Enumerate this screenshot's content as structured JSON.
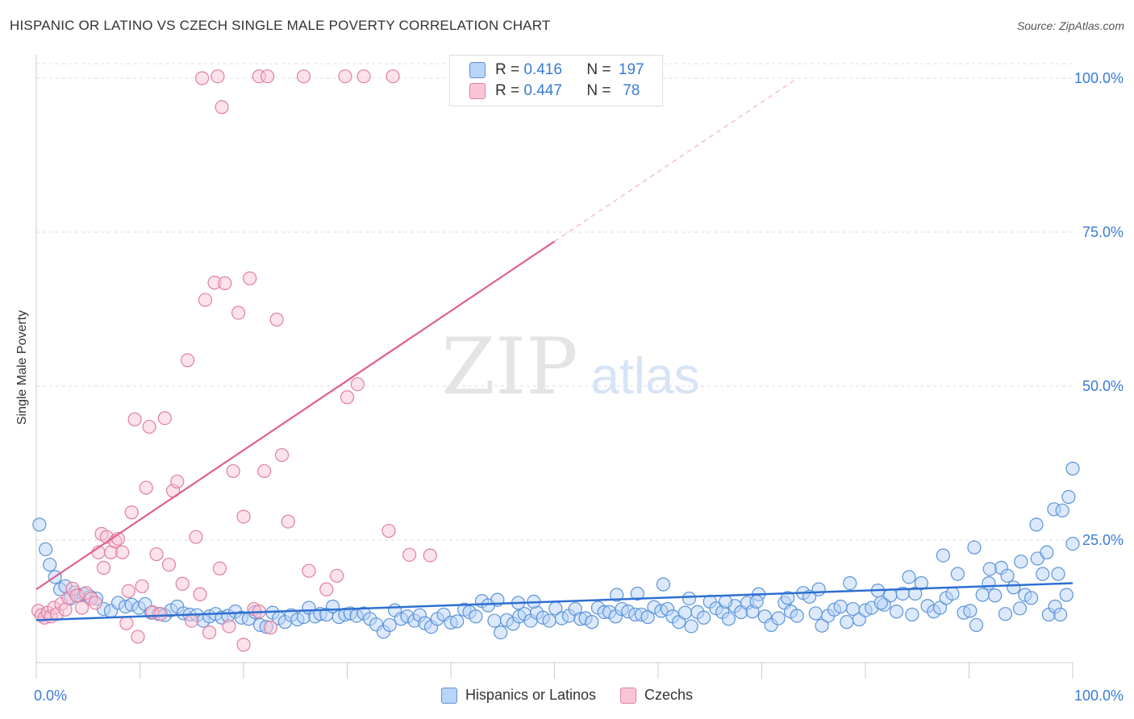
{
  "title": "HISPANIC OR LATINO VS CZECH SINGLE MALE POVERTY CORRELATION CHART",
  "source": "Source: ZipAtlas.com",
  "watermark": {
    "zip": "ZIP",
    "atlas": "atlas"
  },
  "legend_top": [
    {
      "r_label": "R =",
      "r_value": "0.416",
      "n_label": "N =",
      "n_value": "197",
      "color": "#a9c9f5"
    },
    {
      "r_label": "R =",
      "r_value": "0.447",
      "n_label": "N =",
      "n_value": "78",
      "color": "#f7b6cb"
    }
  ],
  "colors": {
    "blue_fill": "#b8d4f7",
    "blue_stroke": "#5b93d9",
    "blue_line": "#2d6fd1",
    "pink_fill": "#f9c5d5",
    "pink_stroke": "#e07fa0",
    "pink_line": "#e0608a",
    "accent_text": "#3a7bd5",
    "grid": "#dddddd"
  },
  "chart_data": {
    "type": "scatter",
    "title": "HISPANIC OR LATINO VS CZECH SINGLE MALE POVERTY CORRELATION CHART",
    "xlabel": "",
    "ylabel": "Single Male Poverty",
    "xlim": [
      0,
      100
    ],
    "ylim": [
      5,
      102
    ],
    "x_tick_labels": [
      "0.0%",
      "100.0%"
    ],
    "y_ticks": [
      25,
      50,
      75,
      100
    ],
    "y_tick_labels": [
      "25.0%",
      "50.0%",
      "75.0%",
      "100.0%"
    ],
    "grid": true,
    "legend_position": "bottom",
    "series": [
      {
        "name": "Hispanics or Latinos",
        "color": "#5b93d9",
        "trend": {
          "x": [
            0,
            100
          ],
          "y": [
            12.0,
            18.0
          ],
          "style": "solid"
        },
        "points": [
          [
            0.3,
            27.5
          ],
          [
            0.9,
            23.5
          ],
          [
            1.3,
            21.0
          ],
          [
            1.8,
            19.0
          ],
          [
            2.3,
            17.0
          ],
          [
            2.8,
            17.5
          ],
          [
            3.3,
            15.5
          ],
          [
            3.7,
            16.5
          ],
          [
            4.1,
            16.0
          ],
          [
            4.6,
            16.2
          ],
          [
            5.2,
            15.8
          ],
          [
            5.8,
            15.5
          ],
          [
            6.5,
            13.8
          ],
          [
            7.2,
            13.5
          ],
          [
            7.9,
            14.8
          ],
          [
            8.6,
            14.2
          ],
          [
            9.2,
            14.5
          ],
          [
            9.9,
            14.0
          ],
          [
            10.5,
            14.6
          ],
          [
            11.1,
            13.2
          ],
          [
            11.8,
            13.0
          ],
          [
            12.4,
            12.8
          ],
          [
            13.0,
            13.6
          ],
          [
            13.6,
            14.2
          ],
          [
            14.2,
            13.1
          ],
          [
            14.8,
            12.9
          ],
          [
            15.5,
            12.8
          ],
          [
            16.1,
            11.9
          ],
          [
            16.7,
            12.6
          ],
          [
            17.3,
            13.0
          ],
          [
            17.9,
            12.4
          ],
          [
            18.5,
            12.7
          ],
          [
            19.2,
            13.4
          ],
          [
            19.8,
            12.4
          ],
          [
            20.5,
            12.2
          ],
          [
            21.1,
            13.3
          ],
          [
            21.6,
            11.2
          ],
          [
            22.2,
            10.9
          ],
          [
            22.8,
            13.2
          ],
          [
            23.4,
            12.3
          ],
          [
            24.0,
            11.7
          ],
          [
            24.6,
            12.8
          ],
          [
            25.2,
            12.1
          ],
          [
            25.8,
            12.5
          ],
          [
            26.3,
            14.0
          ],
          [
            26.9,
            12.6
          ],
          [
            27.4,
            13.0
          ],
          [
            28.0,
            12.9
          ],
          [
            28.6,
            14.2
          ],
          [
            29.2,
            12.5
          ],
          [
            29.8,
            12.9
          ],
          [
            30.3,
            13.1
          ],
          [
            30.9,
            12.7
          ],
          [
            31.6,
            13.1
          ],
          [
            32.2,
            12.2
          ],
          [
            32.8,
            11.3
          ],
          [
            33.5,
            10.1
          ],
          [
            34.1,
            11.2
          ],
          [
            34.6,
            13.6
          ],
          [
            35.2,
            12.2
          ],
          [
            35.8,
            12.6
          ],
          [
            36.5,
            11.9
          ],
          [
            37.0,
            12.8
          ],
          [
            37.5,
            11.5
          ],
          [
            38.1,
            10.9
          ],
          [
            38.7,
            12.2
          ],
          [
            39.3,
            12.9
          ],
          [
            40.0,
            11.6
          ],
          [
            40.6,
            11.8
          ],
          [
            41.3,
            13.7
          ],
          [
            41.8,
            13.3
          ],
          [
            42.4,
            12.6
          ],
          [
            43.0,
            15.1
          ],
          [
            43.6,
            14.4
          ],
          [
            44.2,
            11.9
          ],
          [
            44.8,
            10.0
          ],
          [
            45.4,
            12.0
          ],
          [
            46.0,
            11.4
          ],
          [
            46.6,
            12.6
          ],
          [
            47.1,
            13.0
          ],
          [
            47.7,
            11.9
          ],
          [
            48.3,
            13.2
          ],
          [
            48.9,
            12.4
          ],
          [
            49.5,
            11.9
          ],
          [
            50.1,
            13.9
          ],
          [
            50.7,
            12.3
          ],
          [
            51.4,
            12.7
          ],
          [
            52.0,
            13.8
          ],
          [
            52.5,
            12.2
          ],
          [
            53.0,
            12.3
          ],
          [
            53.6,
            11.7
          ],
          [
            54.2,
            14.0
          ],
          [
            54.8,
            13.3
          ],
          [
            55.3,
            13.3
          ],
          [
            55.9,
            12.6
          ],
          [
            56.5,
            13.8
          ],
          [
            57.1,
            13.4
          ],
          [
            57.8,
            12.9
          ],
          [
            58.4,
            12.9
          ],
          [
            59.0,
            12.5
          ],
          [
            59.6,
            14.1
          ],
          [
            60.3,
            13.5
          ],
          [
            60.9,
            13.8
          ],
          [
            61.4,
            12.6
          ],
          [
            62.0,
            11.7
          ],
          [
            62.6,
            13.2
          ],
          [
            63.2,
            11.0
          ],
          [
            63.8,
            13.3
          ],
          [
            64.4,
            12.4
          ],
          [
            65.0,
            15.0
          ],
          [
            65.6,
            13.9
          ],
          [
            66.2,
            13.3
          ],
          [
            66.8,
            12.2
          ],
          [
            67.4,
            14.3
          ],
          [
            68.0,
            13.3
          ],
          [
            68.6,
            14.8
          ],
          [
            69.1,
            13.4
          ],
          [
            69.7,
            16.2
          ],
          [
            70.3,
            12.6
          ],
          [
            70.9,
            11.2
          ],
          [
            71.6,
            12.3
          ],
          [
            72.2,
            14.8
          ],
          [
            72.8,
            13.4
          ],
          [
            73.4,
            12.7
          ],
          [
            74.0,
            16.4
          ],
          [
            74.6,
            15.8
          ],
          [
            75.2,
            13.1
          ],
          [
            75.8,
            11.1
          ],
          [
            76.4,
            12.7
          ],
          [
            77.0,
            13.7
          ],
          [
            77.6,
            14.2
          ],
          [
            78.2,
            11.7
          ],
          [
            78.8,
            13.8
          ],
          [
            79.4,
            12.1
          ],
          [
            80.0,
            13.6
          ],
          [
            80.6,
            14.0
          ],
          [
            81.2,
            16.8
          ],
          [
            81.8,
            14.5
          ],
          [
            82.4,
            16.0
          ],
          [
            83.0,
            13.4
          ],
          [
            83.6,
            16.3
          ],
          [
            84.2,
            19.0
          ],
          [
            84.8,
            16.3
          ],
          [
            85.4,
            18.0
          ],
          [
            86.0,
            14.3
          ],
          [
            86.6,
            13.4
          ],
          [
            87.2,
            14.0
          ],
          [
            87.8,
            15.6
          ],
          [
            88.4,
            16.3
          ],
          [
            88.9,
            19.5
          ],
          [
            89.5,
            13.2
          ],
          [
            90.1,
            13.5
          ],
          [
            90.7,
            11.2
          ],
          [
            91.3,
            16.1
          ],
          [
            91.9,
            18.0
          ],
          [
            92.5,
            16.0
          ],
          [
            93.1,
            20.5
          ],
          [
            93.7,
            19.2
          ],
          [
            94.3,
            17.3
          ],
          [
            94.9,
            13.9
          ],
          [
            95.4,
            16.1
          ],
          [
            96.0,
            15.6
          ],
          [
            96.6,
            22.0
          ],
          [
            97.1,
            19.5
          ],
          [
            97.7,
            12.9
          ],
          [
            98.3,
            14.2
          ],
          [
            98.8,
            12.9
          ],
          [
            99.4,
            16.1
          ],
          [
            100.0,
            24.4
          ],
          [
            56.0,
            16.1
          ],
          [
            58.0,
            16.3
          ],
          [
            60.5,
            17.8
          ],
          [
            63.0,
            15.5
          ],
          [
            66.5,
            15.0
          ],
          [
            69.5,
            15.0
          ],
          [
            72.5,
            15.6
          ],
          [
            75.5,
            17.0
          ],
          [
            78.5,
            18.0
          ],
          [
            81.5,
            14.8
          ],
          [
            84.5,
            12.9
          ],
          [
            87.5,
            22.5
          ],
          [
            90.5,
            23.8
          ],
          [
            92.0,
            20.3
          ],
          [
            93.5,
            13.0
          ],
          [
            95.0,
            21.5
          ],
          [
            96.5,
            27.5
          ],
          [
            97.5,
            23.0
          ],
          [
            98.2,
            30.0
          ],
          [
            98.6,
            19.5
          ],
          [
            99.0,
            29.8
          ],
          [
            99.6,
            32.0
          ],
          [
            100.0,
            36.6
          ],
          [
            44.5,
            15.3
          ],
          [
            46.5,
            14.8
          ],
          [
            48.0,
            15.0
          ]
        ]
      },
      {
        "name": "Czechs",
        "color": "#e07fa0",
        "trend": {
          "x": [
            0,
            50
          ],
          "y": [
            17.0,
            73.5
          ],
          "style": "solid",
          "extension_to": [
            73,
            100
          ],
          "extension_style": "dashed"
        },
        "points": [
          [
            0.2,
            13.5
          ],
          [
            0.5,
            12.8
          ],
          [
            0.8,
            12.4
          ],
          [
            1.1,
            13.2
          ],
          [
            1.4,
            12.6
          ],
          [
            1.7,
            14.0
          ],
          [
            2.0,
            13.0
          ],
          [
            2.4,
            14.6
          ],
          [
            2.8,
            13.7
          ],
          [
            3.1,
            15.6
          ],
          [
            3.5,
            17.1
          ],
          [
            3.9,
            16.0
          ],
          [
            4.4,
            14.0
          ],
          [
            4.8,
            16.4
          ],
          [
            5.3,
            15.5
          ],
          [
            5.7,
            14.8
          ],
          [
            6.0,
            23.0
          ],
          [
            6.3,
            26.0
          ],
          [
            6.5,
            20.5
          ],
          [
            6.8,
            25.5
          ],
          [
            7.2,
            23.0
          ],
          [
            7.6,
            24.8
          ],
          [
            7.9,
            25.2
          ],
          [
            8.3,
            23.0
          ],
          [
            8.7,
            11.5
          ],
          [
            8.9,
            16.7
          ],
          [
            9.2,
            29.5
          ],
          [
            9.5,
            44.6
          ],
          [
            9.8,
            9.3
          ],
          [
            10.2,
            17.5
          ],
          [
            10.6,
            33.5
          ],
          [
            10.9,
            43.4
          ],
          [
            11.2,
            13.3
          ],
          [
            11.6,
            22.7
          ],
          [
            12.0,
            13.0
          ],
          [
            12.4,
            44.8
          ],
          [
            12.8,
            21.0
          ],
          [
            13.2,
            33.0
          ],
          [
            13.6,
            34.5
          ],
          [
            14.1,
            17.9
          ],
          [
            14.6,
            54.2
          ],
          [
            15.0,
            11.9
          ],
          [
            15.4,
            25.5
          ],
          [
            15.8,
            16.2
          ],
          [
            16.3,
            64.0
          ],
          [
            16.7,
            10.0
          ],
          [
            17.2,
            66.8
          ],
          [
            17.7,
            20.4
          ],
          [
            18.2,
            66.7
          ],
          [
            18.6,
            11.0
          ],
          [
            19.0,
            36.2
          ],
          [
            19.5,
            61.9
          ],
          [
            20.0,
            28.8
          ],
          [
            20.6,
            67.5
          ],
          [
            21.0,
            13.8
          ],
          [
            21.5,
            13.4
          ],
          [
            22.0,
            36.2
          ],
          [
            22.6,
            10.8
          ],
          [
            23.2,
            60.8
          ],
          [
            23.7,
            38.8
          ],
          [
            24.3,
            28.0
          ],
          [
            26.3,
            20.0
          ],
          [
            28.0,
            17.0
          ],
          [
            29.0,
            19.2
          ],
          [
            30.0,
            48.2
          ],
          [
            31.0,
            50.3
          ],
          [
            34.0,
            26.5
          ],
          [
            36.0,
            22.6
          ],
          [
            38.0,
            22.5
          ],
          [
            17.5,
            100.3
          ],
          [
            21.5,
            100.3
          ],
          [
            22.3,
            100.3
          ],
          [
            25.8,
            100.3
          ],
          [
            29.8,
            100.3
          ],
          [
            31.6,
            100.3
          ],
          [
            34.4,
            100.3
          ],
          [
            17.9,
            95.3
          ],
          [
            20.0,
            8.0
          ],
          [
            16.0,
            100.0
          ]
        ]
      }
    ]
  }
}
